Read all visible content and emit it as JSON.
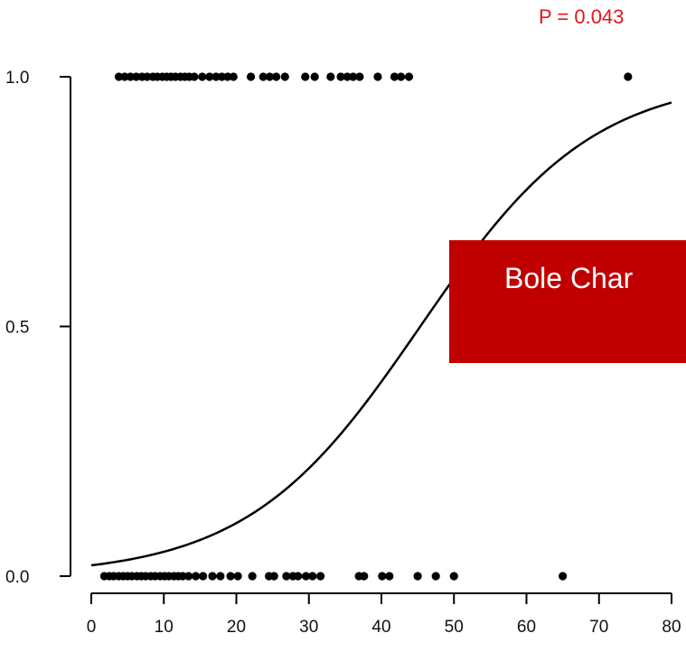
{
  "annotation": {
    "p_value": "P = 0.043",
    "overlay_label": "Bole Char",
    "overlay_color": "#c00000",
    "p_value_color": "#e8141b"
  },
  "chart_data": {
    "type": "scatter",
    "title": "",
    "xlabel": "",
    "ylabel": "",
    "xlim": [
      0,
      80
    ],
    "ylim": [
      0,
      1
    ],
    "x_ticks": [
      "0",
      "10",
      "20",
      "30",
      "40",
      "50",
      "60",
      "70",
      "80"
    ],
    "y_ticks": [
      "0.0",
      "0.5",
      "1.0"
    ],
    "grid": false,
    "series": [
      {
        "type": "scatter",
        "y": 1,
        "x": [
          3.8,
          4.6,
          5.4,
          6.2,
          7.0,
          7.7,
          8.5,
          9.1,
          9.8,
          10.4,
          11.0,
          11.6,
          12.3,
          12.9,
          13.5,
          14.2,
          15.3,
          16.3,
          17.2,
          18.0,
          18.8,
          19.6,
          22.0,
          23.7,
          24.6,
          25.5,
          26.7,
          29.5,
          30.8,
          33.0,
          34.4,
          35.3,
          36.1,
          37.0,
          39.5,
          41.8,
          42.7,
          43.8,
          74.0
        ],
        "color": "#000000"
      },
      {
        "type": "scatter",
        "y": 0,
        "x": [
          1.8,
          2.5,
          3.1,
          3.8,
          4.4,
          5.0,
          5.6,
          6.3,
          6.9,
          7.5,
          8.2,
          8.8,
          9.5,
          10.1,
          10.7,
          11.4,
          12.0,
          12.6,
          13.4,
          14.4,
          15.4,
          16.7,
          17.8,
          19.2,
          20.2,
          22.2,
          24.5,
          25.2,
          26.9,
          27.8,
          28.5,
          29.6,
          30.5,
          31.6,
          36.9,
          37.6,
          40.1,
          41.1,
          45.0,
          47.5,
          50.0,
          65.0
        ],
        "color": "#000000"
      },
      {
        "type": "line",
        "model": "logistic",
        "x_range": [
          0,
          80
        ],
        "logit_intercept": -3.81,
        "logit_slope": 0.084,
        "color": "#000000"
      }
    ]
  }
}
